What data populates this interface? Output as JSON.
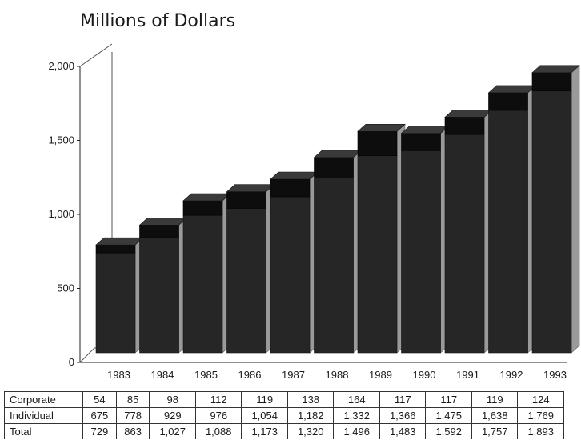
{
  "chart_data": {
    "type": "bar",
    "stacked": true,
    "three_d": true,
    "title": "Millions of Dollars",
    "categories": [
      "1983",
      "1984",
      "1985",
      "1986",
      "1987",
      "1988",
      "1989",
      "1990",
      "1991",
      "1992",
      "1993"
    ],
    "series": [
      {
        "name": "Individual",
        "values": [
          675,
          778,
          929,
          976,
          1054,
          1182,
          1332,
          1366,
          1475,
          1638,
          1769
        ],
        "color": "#262626"
      },
      {
        "name": "Corporate",
        "values": [
          54,
          85,
          98,
          112,
          119,
          138,
          164,
          117,
          117,
          119,
          124
        ],
        "color": "#0d0d0d"
      }
    ],
    "ylim": [
      0,
      2000
    ],
    "yticks": [
      0,
      500,
      1000,
      1500,
      2000
    ],
    "ytick_labels": [
      "0",
      "500",
      "1,000",
      "1,500",
      "2,000"
    ],
    "table": {
      "rows": [
        {
          "label": "Corporate",
          "cells": [
            "54",
            "85",
            "98",
            "112",
            "119",
            "138",
            "164",
            "117",
            "117",
            "119",
            "124"
          ]
        },
        {
          "label": "Individual",
          "cells": [
            "675",
            "778",
            "929",
            "976",
            "1,054",
            "1,182",
            "1,332",
            "1,366",
            "1,475",
            "1,638",
            "1,769"
          ]
        },
        {
          "label": "Total",
          "cells": [
            "729",
            "863",
            "1,027",
            "1,088",
            "1,173",
            "1,320",
            "1,496",
            "1,483",
            "1,592",
            "1,757",
            "1,893"
          ]
        }
      ]
    }
  }
}
